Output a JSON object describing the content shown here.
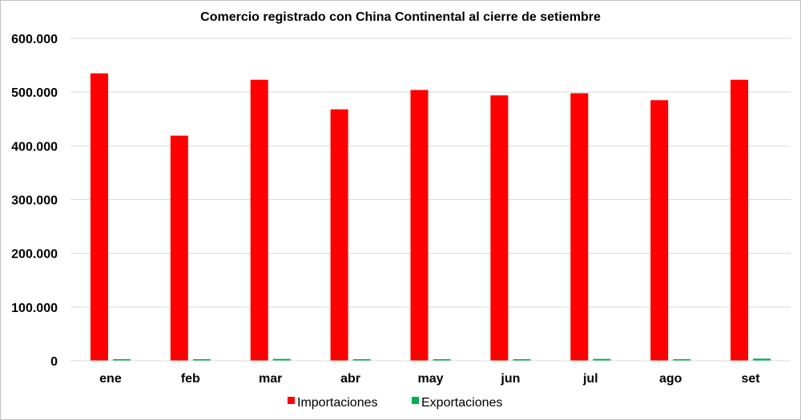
{
  "chart_data": {
    "type": "bar",
    "title": "Comercio registrado con China Continental al cierre de setiembre",
    "xlabel": "",
    "ylabel": "",
    "categories": [
      "ene",
      "feb",
      "mar",
      "abr",
      "may",
      "jun",
      "jul",
      "ago",
      "set"
    ],
    "series": [
      {
        "name": "Importaciones",
        "color": "#ff0000",
        "values": [
          535000,
          419000,
          523000,
          468000,
          504000,
          494000,
          498000,
          485000,
          523000
        ]
      },
      {
        "name": "Exportaciones",
        "color": "#00b050",
        "values": [
          2000,
          2500,
          3500,
          2500,
          2500,
          3000,
          3500,
          1500,
          4000
        ]
      }
    ],
    "ylim": [
      0,
      600000
    ],
    "yticks": [
      0,
      100000,
      200000,
      300000,
      400000,
      500000,
      600000
    ],
    "ytick_labels": [
      "0",
      "100.000",
      "200.000",
      "300.000",
      "400.000",
      "500.000",
      "600.000"
    ],
    "grid": true,
    "legend_position": "bottom"
  }
}
